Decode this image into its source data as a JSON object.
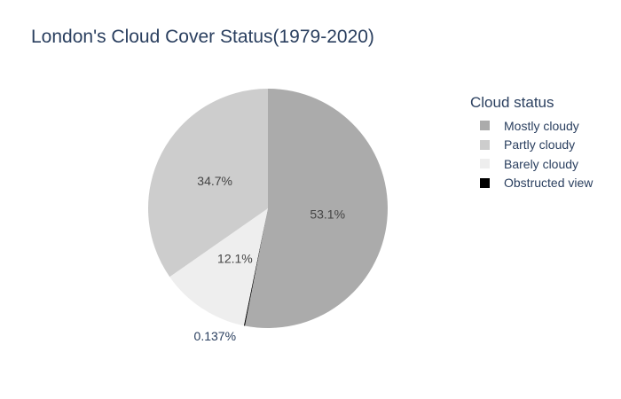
{
  "chart_data": {
    "type": "pie",
    "title": "London's Cloud Cover Status(1979-2020)",
    "legend_title": "Cloud status",
    "legend_position": "right",
    "slices": [
      {
        "label": "Mostly cloudy",
        "percent": 53.1,
        "text": "53.1%",
        "color": "#ababab"
      },
      {
        "label": "Obstructed view",
        "percent": 0.137,
        "text": "0.137%",
        "color": "#000000"
      },
      {
        "label": "Barely cloudy",
        "percent": 12.1,
        "text": "12.1%",
        "color": "#eeeeee"
      },
      {
        "label": "Partly cloudy",
        "percent": 34.7,
        "text": "34.7%",
        "color": "#cdcdcd"
      }
    ],
    "legend_order": [
      "Mostly cloudy",
      "Partly cloudy",
      "Barely cloudy",
      "Obstructed view"
    ]
  }
}
